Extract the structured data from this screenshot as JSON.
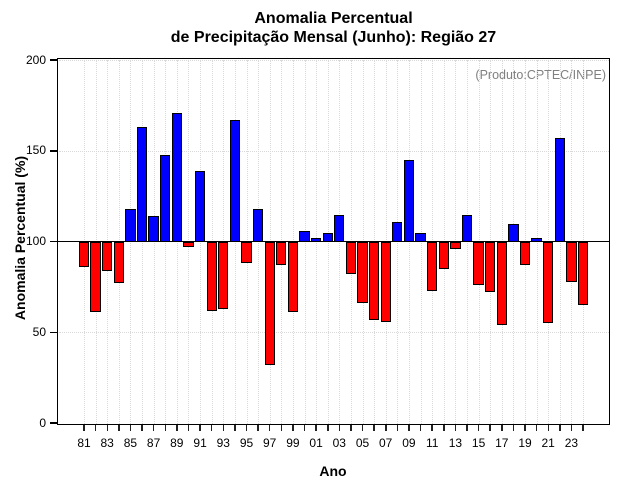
{
  "chart_data": {
    "type": "bar",
    "title_line1": "Anomalia Percentual",
    "title_line2": "de Precipitação Mensal (Junho): Região 27",
    "annotation": "(Produto:CPTEC/INPE)",
    "xlabel": "Ano",
    "ylabel": "Anomalia Percentual (%)",
    "ylim": [
      0,
      200
    ],
    "yticks": [
      0,
      50,
      100,
      150,
      200
    ],
    "baseline": 100,
    "bar_color_above": "#0000ff",
    "bar_color_below": "#ff0000",
    "grid_color": "#d9d9d9",
    "annotation_color": "#808080",
    "legend_position": "none",
    "grid": "dotted",
    "x_label_every": 2,
    "categories": [
      "81",
      "82",
      "83",
      "84",
      "85",
      "86",
      "87",
      "88",
      "89",
      "90",
      "91",
      "92",
      "93",
      "94",
      "95",
      "96",
      "97",
      "98",
      "99",
      "00",
      "01",
      "02",
      "03",
      "04",
      "05",
      "06",
      "07",
      "08",
      "09",
      "10",
      "11",
      "12",
      "13",
      "14",
      "15",
      "16",
      "17",
      "18",
      "19",
      "20",
      "21",
      "22",
      "23",
      "24"
    ],
    "values": [
      86,
      61,
      84,
      77,
      118,
      163,
      114,
      148,
      171,
      97,
      139,
      62,
      63,
      167,
      88,
      118,
      32,
      87,
      61,
      106,
      102,
      105,
      115,
      82,
      66,
      57,
      56,
      111,
      145,
      105,
      73,
      85,
      96,
      115,
      76,
      72,
      54,
      110,
      87,
      102,
      55,
      157,
      78,
      65
    ]
  }
}
